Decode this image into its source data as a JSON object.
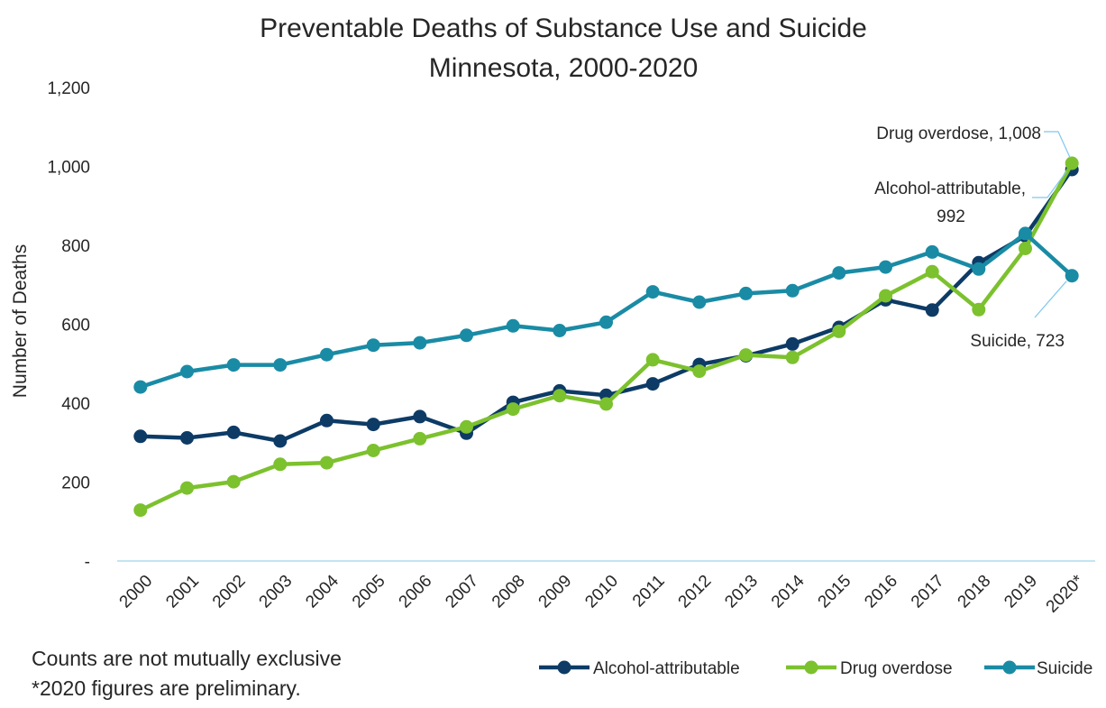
{
  "chart_data": {
    "type": "line",
    "title": "Preventable Deaths of Substance Use and Suicide",
    "subtitle": "Minnesota, 2000-2020",
    "xlabel": "",
    "ylabel": "Number of Deaths",
    "ylim": [
      0,
      1200
    ],
    "yticks": [
      "-",
      "200",
      "400",
      "600",
      "800",
      "1,000",
      "1,200"
    ],
    "categories": [
      "2000",
      "2001",
      "2002",
      "2003",
      "2004",
      "2005",
      "2006",
      "2007",
      "2008",
      "2009",
      "2010",
      "2011",
      "2012",
      "2013",
      "2014",
      "2015",
      "2016",
      "2017",
      "2018",
      "2019",
      "2020*"
    ],
    "grid": false,
    "legend_position": "bottom-right",
    "series": [
      {
        "name": "Alcohol-attributable",
        "color": "#0d3b66",
        "values": [
          316,
          312,
          326,
          304,
          356,
          346,
          366,
          324,
          402,
          431,
          420,
          449,
          498,
          520,
          550,
          592,
          662,
          636,
          756,
          824,
          992
        ],
        "end_label": [
          "Alcohol-attributable,",
          "992"
        ]
      },
      {
        "name": "Drug overdose",
        "color": "#7cc12e",
        "values": [
          129,
          185,
          201,
          245,
          249,
          280,
          310,
          340,
          385,
          419,
          398,
          510,
          481,
          522,
          516,
          582,
          672,
          733,
          637,
          792,
          1008
        ],
        "end_label": [
          "Drug overdose,  1,008"
        ]
      },
      {
        "name": "Suicide",
        "color": "#1a8ba5",
        "values": [
          441,
          480,
          497,
          497,
          523,
          547,
          553,
          572,
          596,
          584,
          605,
          682,
          656,
          678,
          685,
          730,
          745,
          783,
          740,
          830,
          723
        ],
        "end_label": [
          "Suicide,  723"
        ]
      }
    ],
    "notes": [
      "Counts are not mutually exclusive",
      "*2020 figures are preliminary."
    ]
  }
}
